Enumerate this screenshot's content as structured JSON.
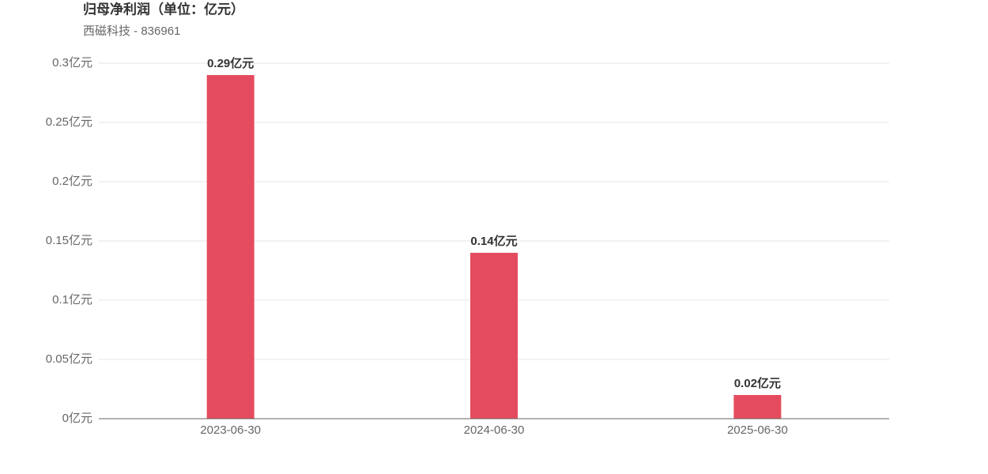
{
  "chart_data": {
    "type": "bar",
    "title": "归母净利润（单位：亿元）",
    "subtitle": "西磁科技 - 836961",
    "categories": [
      "2023-06-30",
      "2024-06-30",
      "2025-06-30"
    ],
    "values": [
      0.29,
      0.14,
      0.02
    ],
    "value_labels": [
      "0.29亿元",
      "0.14亿元",
      "0.02亿元"
    ],
    "color": "#e54b5e",
    "ylim": [
      0,
      0.3
    ],
    "yticks": [
      {
        "value": 0,
        "label": "0亿元"
      },
      {
        "value": 0.05,
        "label": "0.05亿元"
      },
      {
        "value": 0.1,
        "label": "0.1亿元"
      },
      {
        "value": 0.15,
        "label": "0.15亿元"
      },
      {
        "value": 0.2,
        "label": "0.2亿元"
      },
      {
        "value": 0.25,
        "label": "0.25亿元"
      },
      {
        "value": 0.3,
        "label": "0.3亿元"
      }
    ],
    "grid": true
  }
}
